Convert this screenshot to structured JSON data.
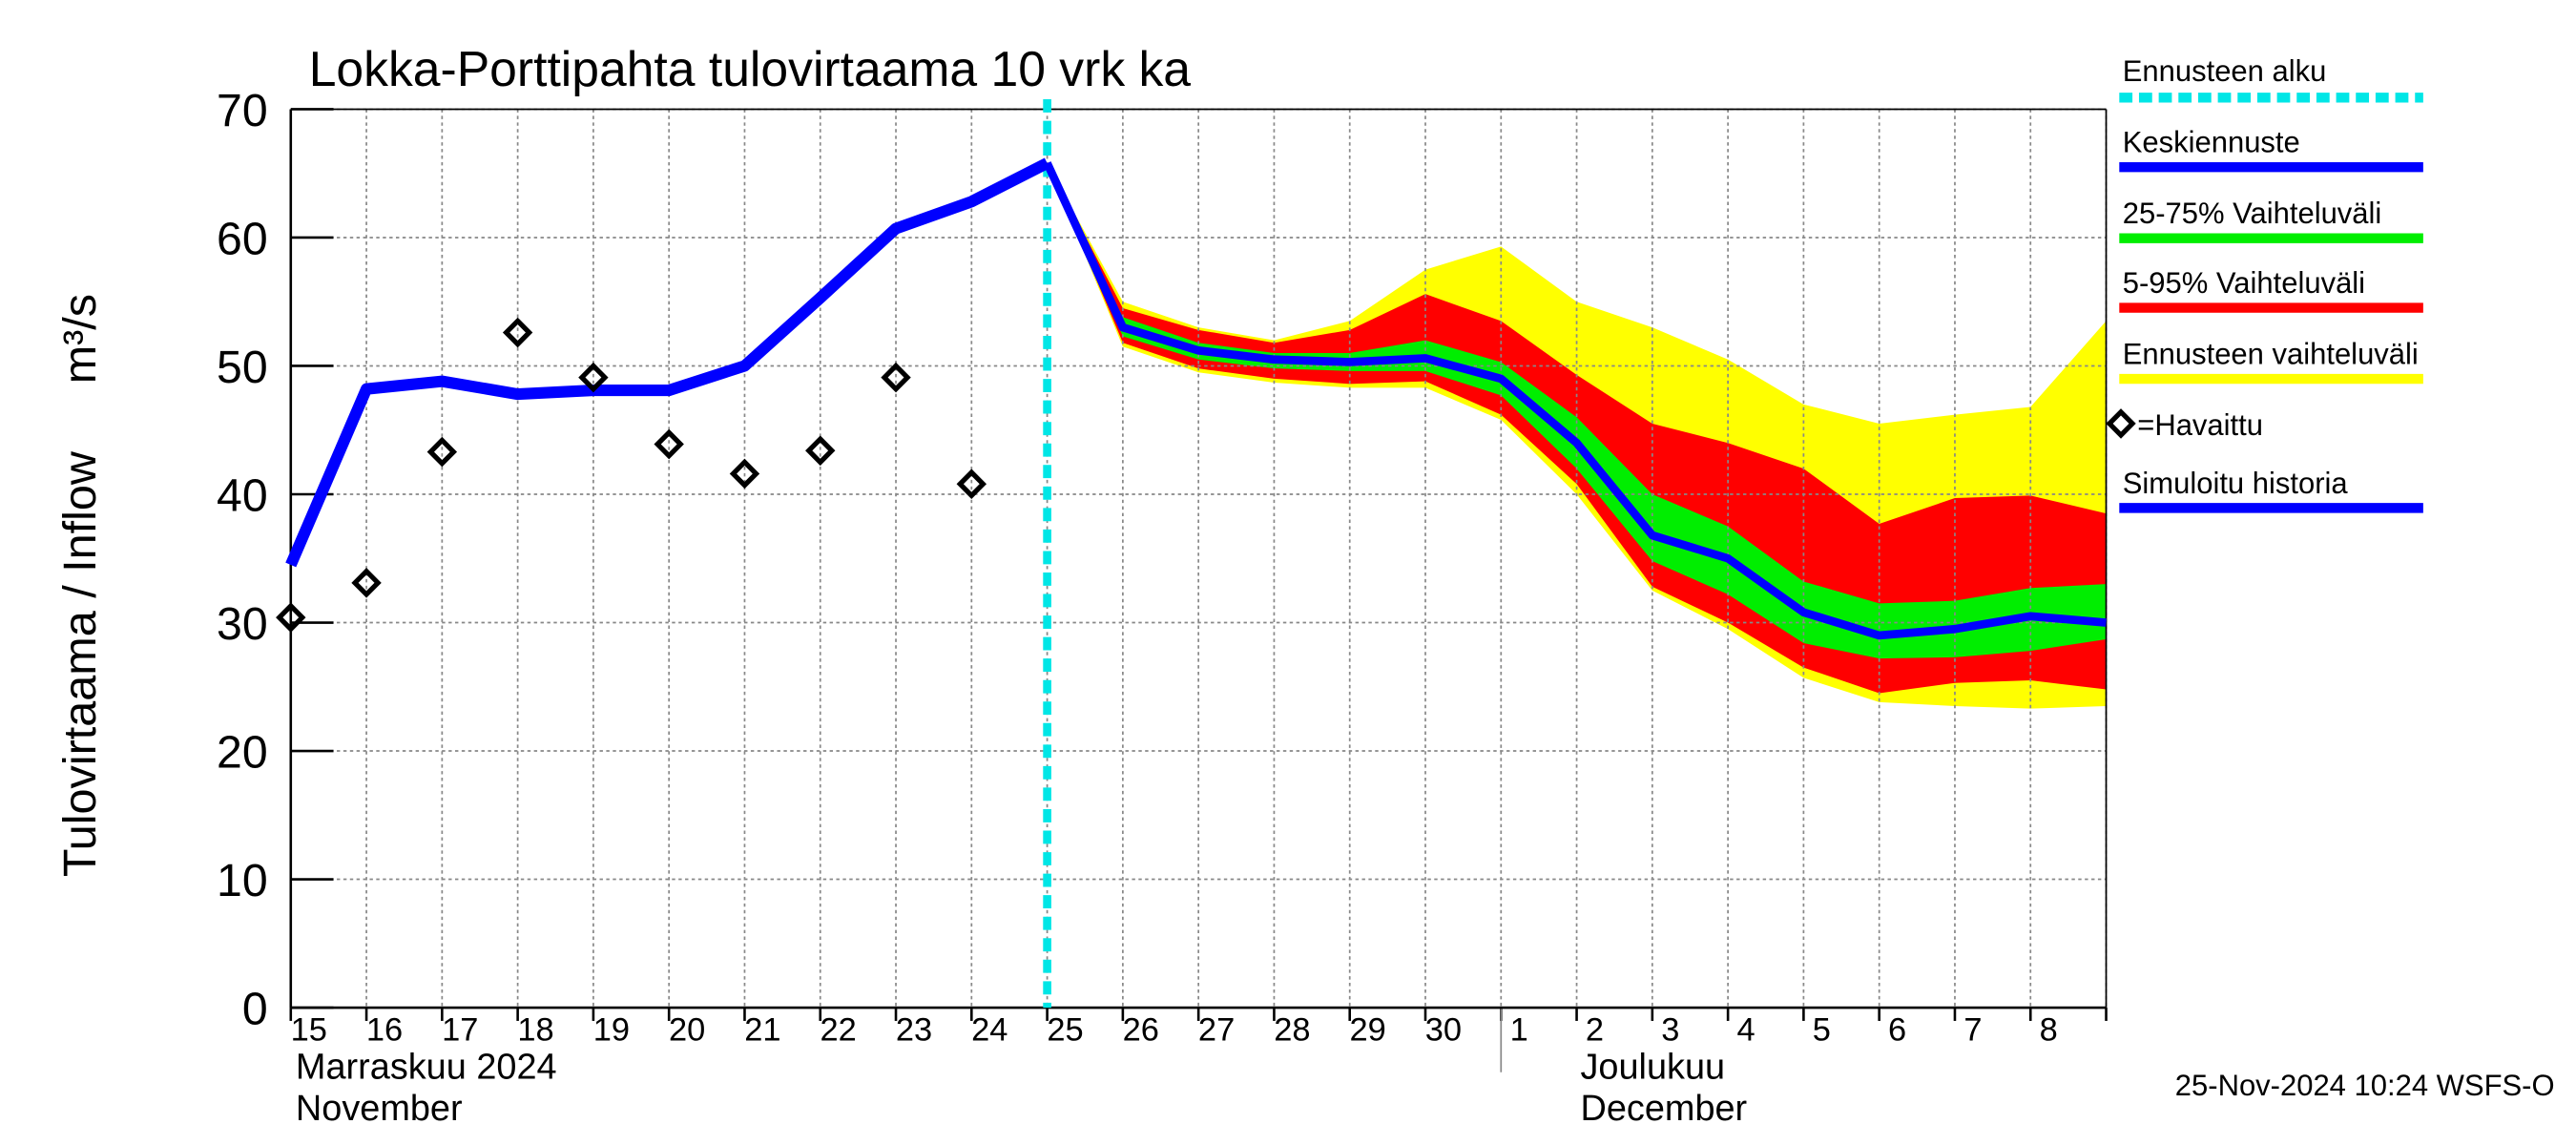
{
  "chart_data": {
    "type": "line",
    "title": "Lokka-Porttipahta tulovirtaama 10 vrk ka",
    "ylabel": "Tulovirtaama / Inflow",
    "ylabel_unit": "m³/s",
    "categories": [
      "15",
      "16",
      "17",
      "18",
      "19",
      "20",
      "21",
      "22",
      "23",
      "24",
      "25",
      "26",
      "27",
      "28",
      "29",
      "30",
      "1",
      "2",
      "3",
      "4",
      "5",
      "6",
      "7",
      "8",
      null
    ],
    "months": [
      {
        "label": "Marraskuu 2024",
        "label_en": "November"
      },
      {
        "label": "Joulukuu",
        "label_en": "December"
      }
    ],
    "ylim": [
      0,
      70
    ],
    "yticks": [
      0,
      10,
      20,
      30,
      40,
      50,
      60,
      70
    ],
    "grid": true,
    "forecast_start": {
      "name": "Ennusteen alku",
      "color": "#00e6e6",
      "category": "25"
    },
    "bands": [
      {
        "name": "Ennusteen vaihteluväli",
        "color": "#ffff00",
        "upper": [
          null,
          null,
          null,
          null,
          null,
          null,
          null,
          null,
          null,
          null,
          65.8,
          55,
          53,
          52,
          53.5,
          57.5,
          59.3,
          55,
          53,
          50.5,
          47,
          45.5,
          46.2,
          46.8,
          53.5
        ],
        "lower": [
          null,
          null,
          null,
          null,
          null,
          null,
          null,
          null,
          null,
          null,
          65.8,
          51.5,
          49.5,
          48.7,
          48.3,
          48.3,
          45.8,
          40,
          32.5,
          29.5,
          25.7,
          23.8,
          23.5,
          23.3,
          23.5
        ]
      },
      {
        "name": "5-95% Vaihteluväli",
        "color": "#ff0000",
        "upper": [
          null,
          null,
          null,
          null,
          null,
          null,
          null,
          null,
          null,
          null,
          65.8,
          54.5,
          52.8,
          51.8,
          52.8,
          55.6,
          53.5,
          49.3,
          45.5,
          44,
          42,
          37.7,
          39.7,
          39.9,
          38.5
        ],
        "lower": [
          null,
          null,
          null,
          null,
          null,
          null,
          null,
          null,
          null,
          null,
          65.8,
          51.8,
          49.8,
          49,
          48.6,
          48.8,
          46.2,
          40.8,
          32.8,
          30,
          26.5,
          24.5,
          25.3,
          25.5,
          24.8
        ]
      },
      {
        "name": "25-75% Vaihteluväli",
        "color": "#00ee00",
        "upper": [
          null,
          null,
          null,
          null,
          null,
          null,
          null,
          null,
          null,
          null,
          65.8,
          53.8,
          51.8,
          51,
          51,
          52,
          50.3,
          46,
          40,
          37.5,
          33.2,
          31.5,
          31.7,
          32.7,
          33
        ],
        "lower": [
          null,
          null,
          null,
          null,
          null,
          null,
          null,
          null,
          null,
          null,
          65.8,
          52.3,
          50.5,
          49.8,
          49.6,
          49.6,
          47.7,
          42,
          34.8,
          32.2,
          28.4,
          27.2,
          27.3,
          27.8,
          28.7
        ]
      }
    ],
    "series": [
      {
        "name": "Simuloitu historia",
        "color": "#0000ff",
        "values": [
          34.5,
          48.2,
          48.8,
          47.8,
          48.1,
          48.1,
          50,
          55.3,
          60.7,
          62.8,
          65.8,
          null,
          null,
          null,
          null,
          null,
          null,
          null,
          null,
          null,
          null,
          null,
          null,
          null,
          null
        ]
      },
      {
        "name": "Keskiennuste",
        "color": "#0000ff",
        "values": [
          null,
          null,
          null,
          null,
          null,
          null,
          null,
          null,
          null,
          null,
          65.8,
          53,
          51.2,
          50.5,
          50.3,
          50.6,
          49,
          44,
          36.8,
          35,
          30.8,
          29,
          29.5,
          30.5,
          30
        ]
      },
      {
        "name": "=Havaittu",
        "color": "#000000",
        "marker": "diamond",
        "values": [
          30.4,
          33.1,
          43.3,
          52.6,
          49.1,
          43.9,
          41.6,
          43.4,
          49.1,
          40.8,
          null,
          null,
          null,
          null,
          null,
          null,
          null,
          null,
          null,
          null,
          null,
          null,
          null,
          null,
          null
        ]
      }
    ],
    "footer": "25-Nov-2024 10:24 WSFS-O"
  }
}
